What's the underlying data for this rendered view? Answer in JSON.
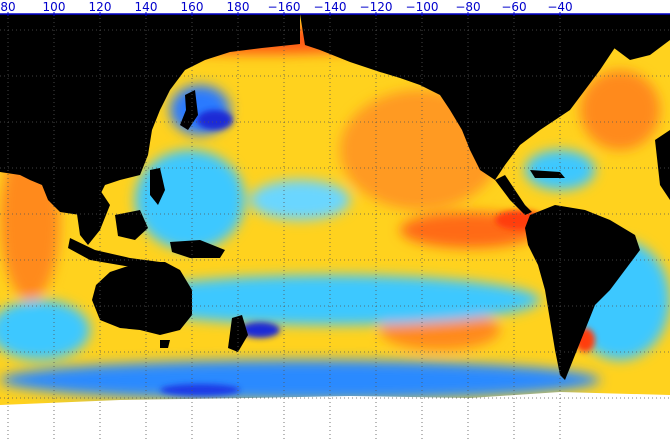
{
  "map": {
    "colors": {
      "land": "#000000",
      "ice": "#ffffff",
      "warm_bg": "#ffd21e",
      "hot": "#ff7a1a",
      "very_hot": "#ff3c10",
      "cool": "#3cc8ff",
      "cold": "#1e6eff",
      "very_cold": "#1a2bd6",
      "grid": "#555555",
      "tick_label": "#0000cc"
    },
    "longitude_ticks": [
      {
        "text": "80",
        "lon": 80
      },
      {
        "text": "100",
        "lon": 100
      },
      {
        "text": "120",
        "lon": 120
      },
      {
        "text": "140",
        "lon": 140
      },
      {
        "text": "160",
        "lon": 160
      },
      {
        "text": "180",
        "lon": 180
      },
      {
        "text": "−160",
        "lon": 200
      },
      {
        "text": "−140",
        "lon": 220
      },
      {
        "text": "−120",
        "lon": 240
      },
      {
        "text": "−100",
        "lon": 260
      },
      {
        "text": "−80",
        "lon": 280
      },
      {
        "text": "−60",
        "lon": 300
      },
      {
        "text": "−40",
        "lon": 320
      }
    ],
    "grid": "dotted"
  }
}
